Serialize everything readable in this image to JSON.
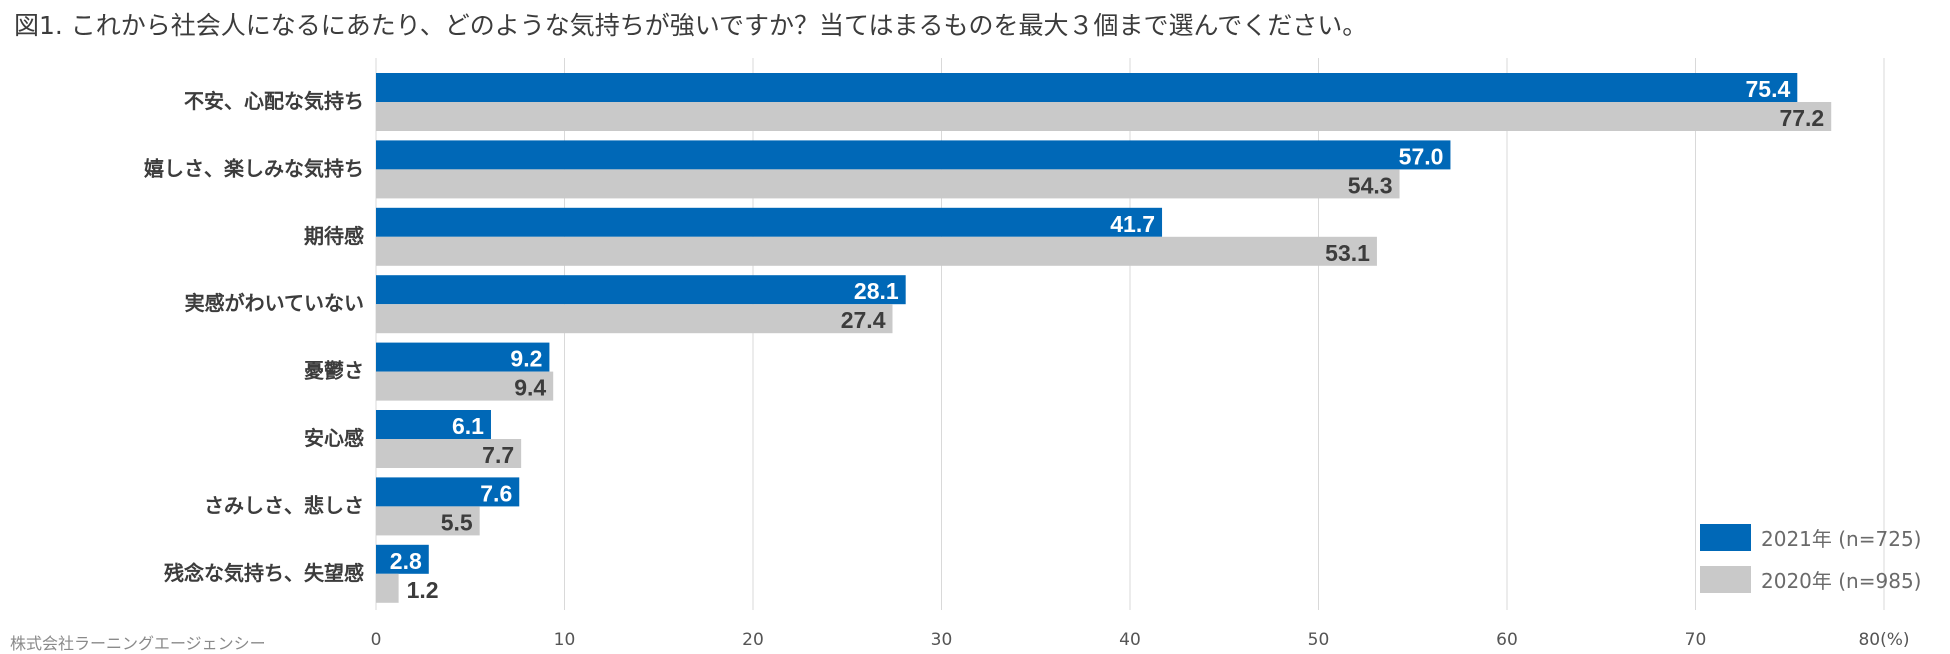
{
  "title": "図1. これから社会人になるにあたり、どのような気持ちが強いですか？当てはまるものを最大３個まで選んでください。",
  "credit": "株式会社ラーニングエージェンシー",
  "chart_data": {
    "type": "bar",
    "orientation": "horizontal",
    "title": "図1. これから社会人になるにあたり、どのような気持ちが強いですか？当てはまるものを最大３個まで選んでください。",
    "categories": [
      "不安、心配な気持ち",
      "嬉しさ、楽しみな気持ち",
      "期待感",
      "実感がわいていない",
      "憂鬱さ",
      "安心感",
      "さみしさ、悲しさ",
      "残念な気持ち、失望感"
    ],
    "series": [
      {
        "name": "2021年 (n=725)",
        "color": "#0068b7",
        "values": [
          75.4,
          57.0,
          41.7,
          28.1,
          9.2,
          6.1,
          7.6,
          2.8
        ],
        "labels": [
          "75.4",
          "57.0",
          "41.7",
          "28.1",
          "9.2",
          "6.1",
          "7.6",
          "2.8"
        ]
      },
      {
        "name": "2020年 (n=985)",
        "color": "#c9c9c9",
        "values": [
          77.2,
          54.3,
          53.1,
          27.4,
          9.4,
          7.7,
          5.5,
          1.2
        ],
        "labels": [
          "77.2",
          "54.3",
          "53.1",
          "27.4",
          "9.4",
          "7.7",
          "5.5",
          "1.2"
        ]
      }
    ],
    "xlim": [
      0,
      80
    ],
    "xticks": [
      "0",
      "10",
      "20",
      "30",
      "40",
      "50",
      "60",
      "70",
      "80(%)"
    ],
    "xlabel": "",
    "ylabel": "",
    "grid": true,
    "legend_position": "bottom-right"
  }
}
